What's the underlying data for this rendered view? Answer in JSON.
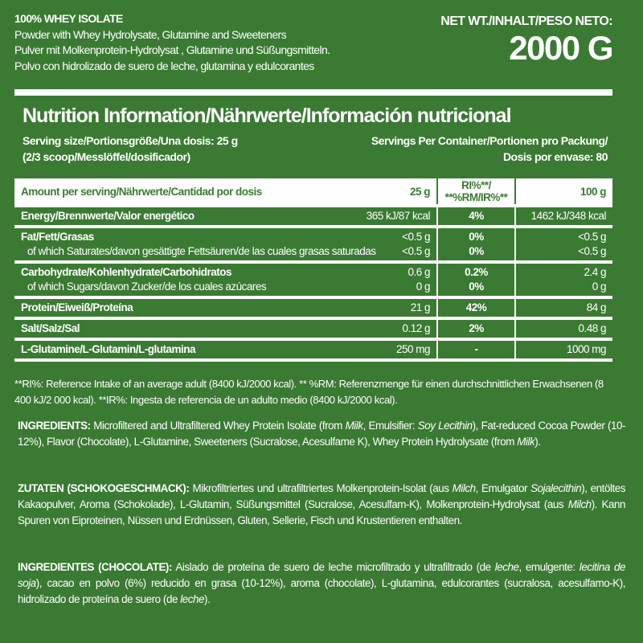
{
  "header": {
    "product": "100% WHEY ISOLATE",
    "desc_en": "Powder with Whey Hydrolysate, Glutamine and Sweeteners",
    "desc_de": "Pulver mit Molkenprotein-Hydrolysat , Glutamine und Süßungsmitteln.",
    "desc_es": "Polvo con hidrolizado de suero de leche, glutamina y edulcorantes",
    "net_label": "NET WT./INHALT/PESO NETO:",
    "net_value": "2000 G"
  },
  "nutrition": {
    "title": "Nutrition Information/Nährwerte/Información nutricional",
    "serving_1": "Serving size/Portionsgröße/Una dosis: 25 g",
    "serving_2": "(2/3 scoop/Messlöffel/dosificador)",
    "servings_1": "Servings Per Container/Portionen pro Packung/",
    "servings_2": "Dosis por envase: 80",
    "header": {
      "label": "Amount per serving/Nährwerte/Cantidad por dosis",
      "per_serving": "25 g",
      "ri_1": "RI%**/",
      "ri_2": "**%RM/IR%**",
      "per_100": "100 g"
    },
    "rows": [
      {
        "lines": [
          {
            "name": "Energy/Brennwerte/Valor energético",
            "bold": true,
            "serving": "365 kJ/87 kcal",
            "ri": "4%",
            "per100": "1462 kJ/348 kcal"
          }
        ]
      },
      {
        "lines": [
          {
            "name": "Fat/Fett/Grasas",
            "bold": true,
            "serving": "<0.5 g",
            "ri": "0%",
            "per100": "<0.5 g"
          },
          {
            "name": "of which Saturates/davon gesättigte Fettsäuren/de las cuales grasas saturadas",
            "bold": false,
            "serving": "<0.5 g",
            "ri": "0%",
            "per100": "<0.5 g"
          }
        ]
      },
      {
        "lines": [
          {
            "name": "Carbohydrate/Kohlenhydrate/Carbohidratos",
            "bold": true,
            "serving": "0.6 g",
            "ri": "0.2%",
            "per100": "2.4 g"
          },
          {
            "name": "of which Sugars/davon Zucker/de los cuales azúcares",
            "bold": false,
            "serving": "0 g",
            "ri": "0%",
            "per100": "0 g"
          }
        ]
      },
      {
        "lines": [
          {
            "name": "Protein/Eiweiß/Proteína",
            "bold": true,
            "serving": "21 g",
            "ri": "42%",
            "per100": "84 g"
          }
        ]
      },
      {
        "lines": [
          {
            "name": "Salt/Salz/Sal",
            "bold": true,
            "serving": "0.12 g",
            "ri": "2%",
            "per100": "0.48 g"
          }
        ]
      },
      {
        "lines": [
          {
            "name": "L-Glutamine/L-Glutamin/L-glutamina",
            "bold": true,
            "serving": "250 mg",
            "ri": "-",
            "per100": "1000 mg"
          }
        ]
      }
    ],
    "footnote": "**RI%: Reference Intake of an average adult (8400 kJ/2000 kcal). ** %RM: Referenzmenge für einen durchschnittlichen Erwachsenen (8 400 kJ/2 000 kcal). **IR%: Ingesta de referencia de un adulto medio (8400 kJ/2000 kcal)."
  },
  "ingredients": {
    "en_label": "INGREDIENTS:",
    "en_html": "Microfiltered and Ultrafiltered Whey Protein Isolate (from <i>Milk</i>, Emulsifier: <i>Soy Lecithin</i>), Fat-reduced Cocoa Powder (10-12%), Flavor (Chocolate), L-Glutamine, Sweeteners (Sucralose, Acesulfame K), Whey Protein Hydrolysate (from <i>Milk</i>).",
    "de_label": "ZUTATEN (SCHOKOGESCHMACK):",
    "de_html": "Mikrofiltriertes und ultrafiltriertes Molkenprotein-Isolat (aus <i>Milch</i>, Emulgator <i>Sojalecithin</i>), entöltes Kakaopulver, Aroma (Schokolade), L-Glutamin, Süßungsmittel (Sucralose, Acesulfam-K), Molkenprotein-Hydrolysat (aus <i>Milch</i>). Kann Spuren von Eiproteinen, Nüssen und Erdnüssen, Gluten, Sellerie, Fisch und Krustentieren enthalten.",
    "es_label": "INGREDIENTES (CHOCOLATE):",
    "es_html": "Aislado de proteína de suero de leche microfiltrado y ultrafiltrado (de <i>leche</i>, emulgente: <i>lecitina de soja</i>), cacao en polvo (6%) reducido en grasa (10-12%), aroma (chocolate), L-glutamina, edulcorantes (sucralosa, acesulfamo-K), hidrolizado de proteína de suero (de <i>leche</i>)."
  },
  "colors": {
    "background": "#3b7a33",
    "text": "#ffffff"
  }
}
